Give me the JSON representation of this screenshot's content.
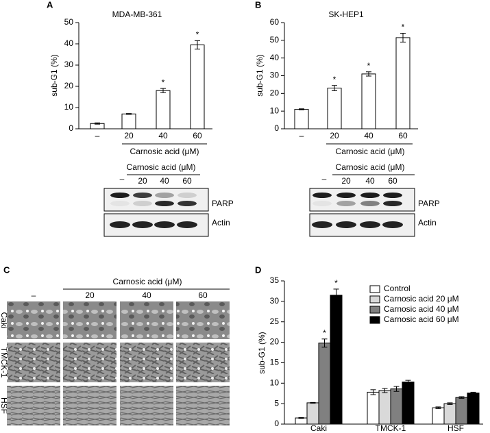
{
  "chart_data": [
    {
      "type": "bar",
      "title": "MDA-MB-361",
      "ylabel": "sub-G1 (%)",
      "xlabel": "Carnosic acid (μM)",
      "categories": [
        "–",
        "20",
        "40",
        "60"
      ],
      "values": [
        2.5,
        7,
        18,
        39.5
      ],
      "errors": [
        0.3,
        0.2,
        1,
        2
      ],
      "significance": [
        null,
        null,
        "*",
        "*"
      ],
      "color": "#ffffff",
      "ylim": [
        0,
        50
      ],
      "yticks": [
        0,
        10,
        20,
        30,
        40,
        50
      ]
    },
    {
      "type": "bar",
      "title": "SK-HEP1",
      "ylabel": "sub-G1 (%)",
      "xlabel": "Carnosic acid (μM)",
      "categories": [
        "–",
        "20",
        "40",
        "60"
      ],
      "values": [
        11,
        23,
        31,
        51.5
      ],
      "errors": [
        0.3,
        1.5,
        1.2,
        2.5
      ],
      "significance": [
        null,
        "*",
        "*",
        "*"
      ],
      "color": "#ffffff",
      "ylim": [
        0,
        60
      ],
      "yticks": [
        0,
        10,
        20,
        30,
        40,
        50,
        60
      ]
    },
    {
      "type": "grouped_bar",
      "ylabel": "sub-G1 (%)",
      "categories": [
        "Caki",
        "TMCK-1",
        "HSF"
      ],
      "series": [
        {
          "name": "Control",
          "color": "#ffffff",
          "values": [
            1.5,
            7.8,
            4
          ],
          "errors": [
            0.1,
            0.6,
            0.2
          ],
          "significance": [
            null,
            null,
            null
          ]
        },
        {
          "name": "Carnosic acid 20 μM",
          "color": "#d9d9d9",
          "values": [
            5.2,
            8.2,
            5
          ],
          "errors": [
            0.1,
            0.5,
            0.2
          ],
          "significance": [
            null,
            null,
            null
          ]
        },
        {
          "name": "Carnosic acid 40 μM",
          "color": "#808080",
          "values": [
            19.8,
            8.6,
            6.5
          ],
          "errors": [
            1,
            0.6,
            0.2
          ],
          "significance": [
            "*",
            null,
            null
          ]
        },
        {
          "name": "Carnosic acid 60 μM",
          "color": "#000000",
          "values": [
            31.5,
            10.3,
            7.6
          ],
          "errors": [
            1.5,
            0.4,
            0.2
          ],
          "significance": [
            "*",
            null,
            null
          ]
        }
      ],
      "ylim": [
        0,
        35
      ],
      "yticks": [
        0,
        5,
        10,
        15,
        20,
        25,
        30,
        35
      ]
    }
  ],
  "panel_labels": [
    "A",
    "B",
    "C",
    "D"
  ],
  "blots": [
    {
      "header": "Carnosic acid (μM)",
      "lanes": [
        "–",
        "20",
        "40",
        "60"
      ],
      "rows": [
        "PARP",
        "Actin"
      ]
    },
    {
      "header": "Carnosic acid (μM)",
      "lanes": [
        "–",
        "20",
        "40",
        "60"
      ],
      "rows": [
        "PARP",
        "Actin"
      ]
    }
  ],
  "micrographs": {
    "header": "Carnosic acid (μM)",
    "columns": [
      "–",
      "20",
      "40",
      "60"
    ],
    "rows": [
      "Caki",
      "TMCK-1",
      "HSF"
    ]
  }
}
